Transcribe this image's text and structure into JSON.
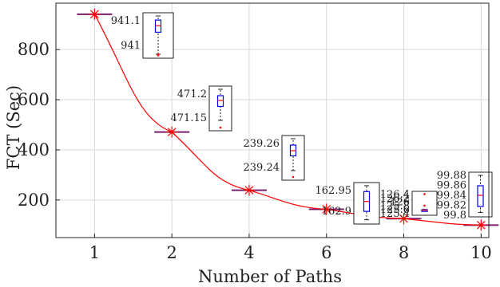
{
  "chart_data": {
    "type": "line",
    "xlabel": "Number of Paths",
    "ylabel": "FCT (Sec)",
    "categories": [
      "1",
      "2",
      "4",
      "6",
      "8",
      "10"
    ],
    "ylim": [
      50,
      985
    ],
    "yticks": [
      200,
      400,
      600,
      800
    ],
    "grid": true,
    "legend": "none",
    "series": [
      {
        "values": [
          941,
          471,
          239,
          162.9,
          125.6,
          99.84
        ],
        "color": "#ff0000",
        "marker": "asterisk"
      }
    ],
    "median_bar_color": "#7a1f6e",
    "insets": [
      {
        "category": "1",
        "ymin": 941,
        "ymax": 941.1,
        "labels": [
          "941.1",
          "941"
        ],
        "box": [
          0.58,
          0.88
        ],
        "median": 0.74,
        "whisker": [
          0.04,
          0.98
        ],
        "outliers": [
          0.01,
          0.03
        ]
      },
      {
        "category": "2",
        "ymin": 471.15,
        "ymax": 471.2,
        "labels": [
          "471.2",
          "471.15"
        ],
        "box": [
          0.55,
          0.82
        ],
        "median": 0.7,
        "whisker": [
          0.2,
          0.98
        ],
        "outliers": [
          0.02
        ]
      },
      {
        "category": "4",
        "ymin": 239.24,
        "ymax": 239.26,
        "labels": [
          "239.26",
          "239.24"
        ],
        "box": [
          0.55,
          0.82
        ],
        "median": 0.68,
        "whisker": [
          0.18,
          0.98
        ],
        "outliers": [
          0.02
        ]
      },
      {
        "category": "6",
        "ymin": 162.9,
        "ymax": 162.95,
        "labels": [
          "162.95",
          "162.9"
        ],
        "box": [
          0.28,
          0.82
        ],
        "median": 0.55,
        "whisker": [
          0.05,
          0.98
        ],
        "outliers": []
      },
      {
        "category": "8",
        "ymin": 125.4,
        "ymax": 126.4,
        "labels": [
          "126.4",
          "126.2",
          "126",
          "125.8",
          "125.6",
          "125.4"
        ],
        "box": [
          0.12,
          0.16
        ],
        "median": 0.14,
        "whisker": [
          0.1,
          0.18
        ],
        "outliers": [
          0.98,
          0.38
        ]
      },
      {
        "category": "10",
        "ymin": 99.8,
        "ymax": 99.88,
        "labels": [
          "99.88",
          "99.86",
          "99.84",
          "99.82",
          "99.8"
        ],
        "box": [
          0.2,
          0.72
        ],
        "median": 0.48,
        "whisker": [
          0.05,
          0.98
        ],
        "outliers": []
      }
    ]
  }
}
